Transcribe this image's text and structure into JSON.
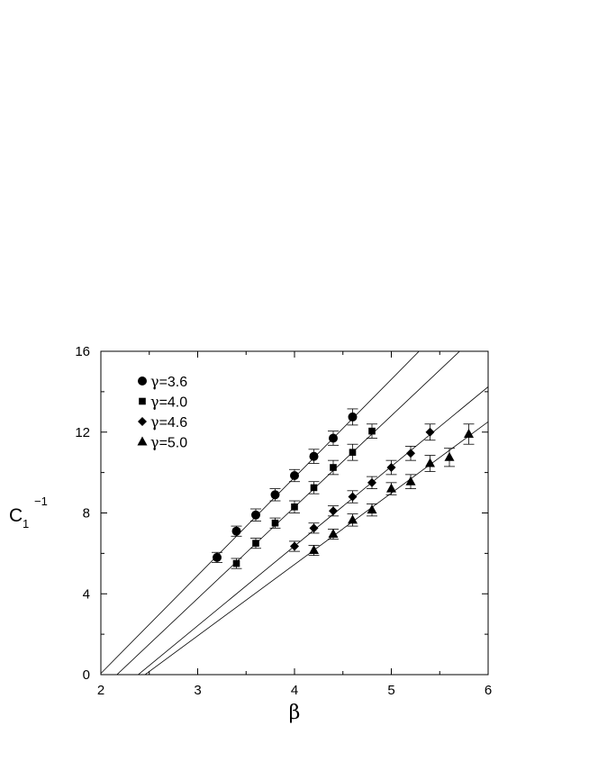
{
  "chart_data": {
    "type": "scatter",
    "xlabel": "β",
    "ylabel_main": "C",
    "ylabel_sub": "1",
    "ylabel_sup": "−1",
    "xlim": [
      2,
      6
    ],
    "ylim": [
      0,
      16
    ],
    "xticks": [
      2,
      3,
      4,
      5,
      6
    ],
    "yticks": [
      0,
      4,
      8,
      12,
      16
    ],
    "xtick_labels": [
      "2",
      "3",
      "4",
      "5",
      "6"
    ],
    "ytick_labels": [
      "0",
      "4",
      "8",
      "12",
      "16"
    ],
    "grid": false,
    "legend_position": "top-left",
    "series": [
      {
        "name": "γ=3.6",
        "legend_symbol": "γ",
        "legend_value": "=3.6",
        "marker": "circle",
        "x": [
          3.2,
          3.4,
          3.6,
          3.8,
          4.0,
          4.2,
          4.4,
          4.6
        ],
        "y": [
          5.8,
          7.1,
          7.9,
          8.9,
          9.85,
          10.8,
          11.7,
          12.75
        ],
        "err": [
          0.25,
          0.25,
          0.3,
          0.3,
          0.3,
          0.35,
          0.35,
          0.4
        ],
        "fit_line": {
          "slope": 4.85,
          "intercept": -9.64
        }
      },
      {
        "name": "γ=4.0",
        "legend_symbol": "γ",
        "legend_value": "=4.0",
        "marker": "square",
        "x": [
          3.4,
          3.6,
          3.8,
          4.0,
          4.2,
          4.4,
          4.6,
          4.8
        ],
        "y": [
          5.5,
          6.5,
          7.5,
          8.3,
          9.25,
          10.25,
          11.0,
          12.05
        ],
        "err": [
          0.25,
          0.25,
          0.25,
          0.3,
          0.3,
          0.35,
          0.4,
          0.35
        ],
        "fit_line": {
          "slope": 4.52,
          "intercept": -9.79
        }
      },
      {
        "name": "γ=4.6",
        "legend_symbol": "γ",
        "legend_value": "=4.6",
        "marker": "diamond",
        "x": [
          4.0,
          4.2,
          4.4,
          4.6,
          4.8,
          5.0,
          5.2,
          5.4
        ],
        "y": [
          6.35,
          7.25,
          8.1,
          8.8,
          9.5,
          10.25,
          10.95,
          12.0
        ],
        "err": [
          0.25,
          0.25,
          0.25,
          0.3,
          0.3,
          0.35,
          0.35,
          0.4
        ],
        "fit_line": {
          "slope": 3.94,
          "intercept": -9.4
        }
      },
      {
        "name": "γ=5.0",
        "legend_symbol": "γ",
        "legend_value": "=5.0",
        "marker": "triangle",
        "x": [
          4.2,
          4.4,
          4.6,
          4.8,
          5.0,
          5.2,
          5.4,
          5.6,
          5.8
        ],
        "y": [
          6.15,
          6.95,
          7.65,
          8.15,
          9.2,
          9.55,
          10.45,
          10.75,
          11.9
        ],
        "err": [
          0.25,
          0.25,
          0.3,
          0.3,
          0.3,
          0.35,
          0.4,
          0.45,
          0.5
        ],
        "fit_line": {
          "slope": 3.53,
          "intercept": -8.67
        }
      }
    ]
  }
}
